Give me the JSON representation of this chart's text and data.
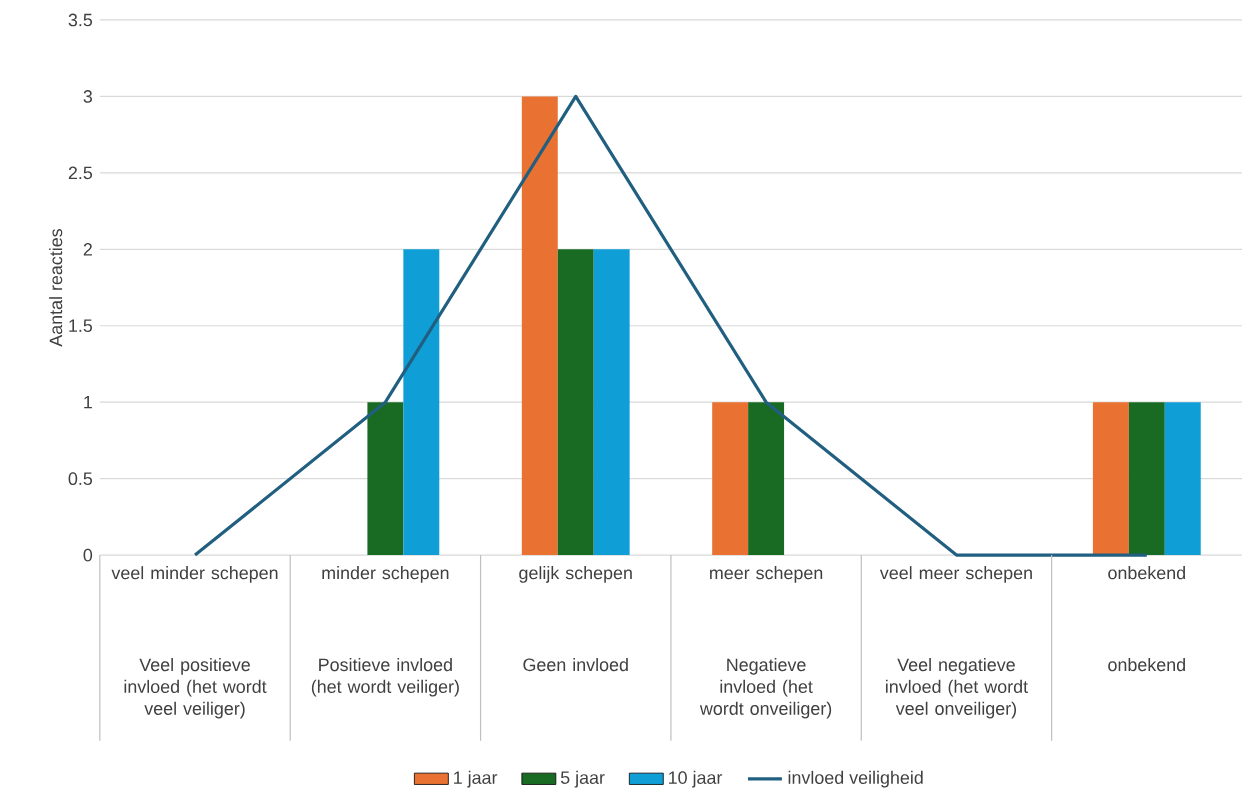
{
  "chart_data": {
    "type": "bar",
    "ylabel": "Aantal reacties",
    "categories": [
      "veel minder schepen",
      "minder schepen",
      "gelijk schepen",
      "meer schepen",
      "veel meer schepen",
      "onbekend"
    ],
    "annotations": [
      "Veel positieve invloed (het wordt veel veiliger)",
      "Positieve invloed (het wordt veiliger)",
      "Geen invloed",
      "Negatieve invloed (het wordt onveiliger)",
      "Veel negatieve invloed (het wordt veel onveiliger)",
      "onbekend"
    ],
    "series": [
      {
        "name": "1 jaar",
        "color": "#e97132",
        "values": [
          0,
          0,
          3,
          1,
          0,
          1
        ]
      },
      {
        "name": "5 jaar",
        "color": "#196b24",
        "values": [
          0,
          1,
          2,
          1,
          0,
          1
        ]
      },
      {
        "name": "10 jaar",
        "color": "#0f9ed5",
        "values": [
          0,
          2,
          2,
          0,
          0,
          1
        ]
      },
      {
        "name": "invloed veiligheid",
        "type": "line",
        "color": "#215f80",
        "values": [
          0,
          1,
          3,
          1,
          0,
          0
        ]
      }
    ],
    "ylim": [
      0,
      3.5
    ],
    "yticks": [
      0,
      0.5,
      1,
      1.5,
      2,
      2.5,
      3,
      3.5
    ],
    "grid": "y",
    "legend": "bottom"
  }
}
